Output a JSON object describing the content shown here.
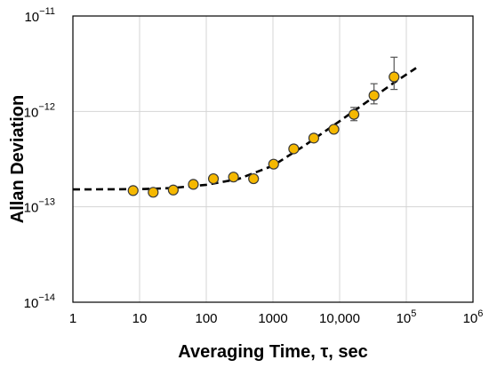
{
  "chart_data": {
    "type": "scatter",
    "xlabel": "Averaging Time, τ, sec",
    "ylabel": "Allan Deviation",
    "xscale": "log",
    "yscale": "log",
    "xlim": [
      1,
      1000000
    ],
    "ylim": [
      1e-14,
      1e-11
    ],
    "grid": true,
    "legend": "none",
    "x_tick_labels": [
      {
        "value": 1,
        "label": "1"
      },
      {
        "value": 10,
        "label": "10"
      },
      {
        "value": 100,
        "label": "100"
      },
      {
        "value": 1000,
        "label": "1000"
      },
      {
        "value": 10000,
        "label": "10,000"
      },
      {
        "value": 100000,
        "base": "10",
        "exp": "5"
      },
      {
        "value": 1000000,
        "base": "10",
        "exp": "6"
      }
    ],
    "y_tick_labels": [
      {
        "value": 1e-14,
        "base": "10",
        "exp": "−14"
      },
      {
        "value": 1e-13,
        "base": "10",
        "exp": "−13"
      },
      {
        "value": 1e-12,
        "base": "10",
        "exp": "−12"
      },
      {
        "value": 1e-11,
        "base": "10",
        "exp": "−11"
      }
    ],
    "series": [
      {
        "marker_color": "#F5B800",
        "points": [
          {
            "x": 8,
            "y": 1.48e-13
          },
          {
            "x": 16,
            "y": 1.42e-13
          },
          {
            "x": 32,
            "y": 1.5e-13
          },
          {
            "x": 64,
            "y": 1.72e-13
          },
          {
            "x": 128,
            "y": 1.97e-13
          },
          {
            "x": 256,
            "y": 2.05e-13
          },
          {
            "x": 512,
            "y": 1.97e-13
          },
          {
            "x": 1024,
            "y": 2.8e-13
          },
          {
            "x": 2048,
            "y": 4.05e-13
          },
          {
            "x": 4096,
            "y": 5.25e-13
          },
          {
            "x": 8192,
            "y": 6.5e-13
          },
          {
            "x": 16384,
            "y": 9.3e-13,
            "err_low": 8e-13,
            "err_high": 1.1e-12
          },
          {
            "x": 32768,
            "y": 1.47e-12,
            "err_low": 1.2e-12,
            "err_high": 1.95e-12
          },
          {
            "x": 65536,
            "y": 2.3e-12,
            "err_low": 1.7e-12,
            "err_high": 3.7e-12
          }
        ]
      }
    ],
    "fit_curve": {
      "style": "dashed",
      "color": "#000000",
      "points": [
        [
          1,
          1.52e-13
        ],
        [
          10,
          1.53e-13
        ],
        [
          30,
          1.57e-13
        ],
        [
          100,
          1.7e-13
        ],
        [
          300,
          1.95e-13
        ],
        [
          1000,
          2.7e-13
        ],
        [
          3000,
          4.4e-13
        ],
        [
          10000,
          7.9e-13
        ],
        [
          30000,
          1.36e-12
        ],
        [
          60000,
          1.92e-12
        ],
        [
          140000,
          2.85e-12
        ]
      ]
    }
  }
}
